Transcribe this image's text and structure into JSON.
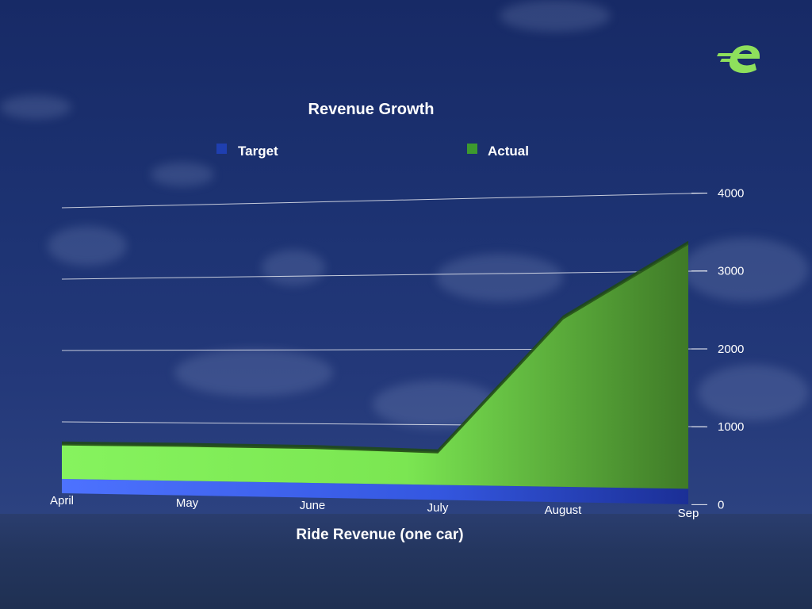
{
  "colors": {
    "target": "#3a5ff0",
    "actual": "#7ef25a",
    "target_swatch": "#1f3fb0",
    "actual_swatch": "#3d9a2e",
    "logo": "#8ee05c"
  },
  "logo_icon": "e-logo-icon",
  "chart_data": {
    "type": "area",
    "title": "Revenue Growth",
    "xlabel": "Ride Revenue (one car)",
    "ylabel": "",
    "categories": [
      "April",
      "May",
      "June",
      "July",
      "August",
      "Sep"
    ],
    "series": [
      {
        "name": "Target",
        "values": [
          200,
          200,
          200,
          200,
          200,
          200
        ]
      },
      {
        "name": "Actual",
        "values": [
          480,
          480,
          470,
          430,
          2200,
          3150
        ]
      }
    ],
    "stacked": true,
    "ylim": [
      0,
      4000
    ],
    "yticks": [
      0,
      1000,
      2000,
      3000,
      4000
    ],
    "ytick_labels": [
      "0",
      "1000",
      "2000",
      "3000",
      "4000"
    ],
    "grid": true,
    "legend_position": "top",
    "y_axis_side": "right",
    "perspective": "3d"
  }
}
